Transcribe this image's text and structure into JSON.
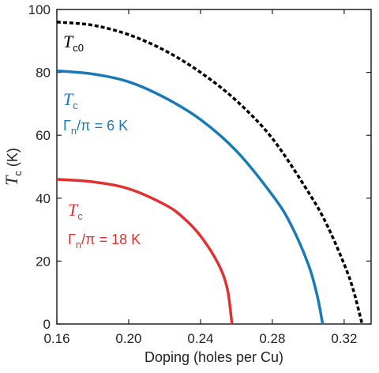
{
  "chart_data": {
    "type": "line",
    "xlabel": "Doping (holes per Cu)",
    "ylabel_main": "T",
    "ylabel_sub": "c",
    "ylabel_unit": " (K)",
    "xlim": [
      0.16,
      0.335
    ],
    "ylim": [
      0,
      100
    ],
    "xticks": [
      "0.16",
      "0.20",
      "0.24",
      "0.28",
      "0.32"
    ],
    "yticks": [
      "0",
      "20",
      "40",
      "60",
      "80",
      "100"
    ],
    "grid": false,
    "series": [
      {
        "name": "Tc0",
        "color": "#000000",
        "style": "dashed",
        "x": [
          0.16,
          0.18,
          0.2,
          0.22,
          0.24,
          0.26,
          0.28,
          0.3,
          0.31,
          0.32,
          0.325,
          0.33
        ],
        "y": [
          96,
          95,
          92,
          87,
          80,
          71,
          59,
          42,
          32,
          19,
          11,
          0
        ]
      },
      {
        "name": "Tc, Γn/π = 6 K",
        "color": "#1a7ab8",
        "style": "solid",
        "x": [
          0.16,
          0.18,
          0.2,
          0.22,
          0.24,
          0.26,
          0.28,
          0.29,
          0.3,
          0.305,
          0.308
        ],
        "y": [
          80.5,
          79.5,
          77,
          72,
          65,
          55,
          41,
          32,
          19,
          9,
          0
        ]
      },
      {
        "name": "Tc, Γn/π = 18 K",
        "color": "#e03030",
        "style": "solid",
        "x": [
          0.16,
          0.18,
          0.2,
          0.22,
          0.23,
          0.24,
          0.25,
          0.255,
          0.2575
        ],
        "y": [
          46,
          45.2,
          43,
          38,
          34,
          28,
          19,
          11,
          0
        ]
      }
    ],
    "annotations": [
      {
        "main": "T",
        "sub": "c0",
        "color": "#000000"
      },
      {
        "main": "T",
        "sub": "c",
        "color": "#1a7ab8",
        "gamma_label": "Γ",
        "gamma_sub": "n",
        "gamma_rest": "/π = 6 K"
      },
      {
        "main": "T",
        "sub": "c",
        "color": "#e03030",
        "gamma_label": "Γ",
        "gamma_sub": "n",
        "gamma_rest": "/π = 18 K"
      }
    ]
  }
}
